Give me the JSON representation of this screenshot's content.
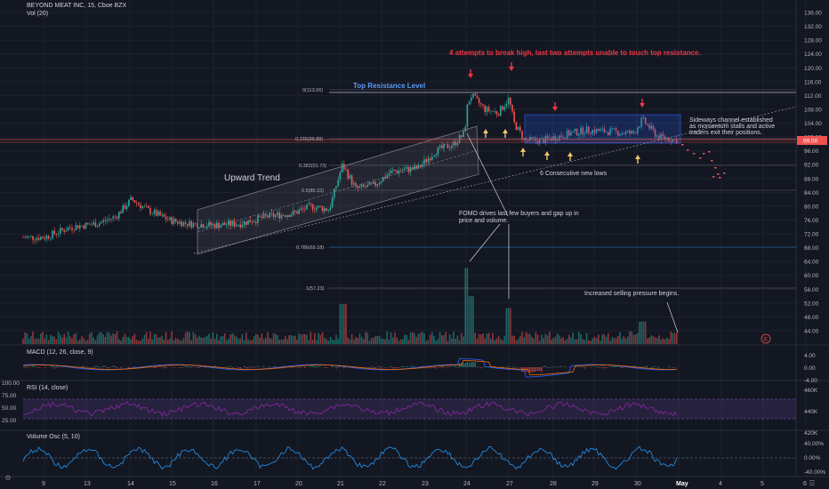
{
  "header": {
    "symbol_line": "BEYOND MEAT INC, 15, Cboe BZX",
    "volume_label": "Vol (20)"
  },
  "price_axis": {
    "ticks": [
      "136.00",
      "132.00",
      "128.00",
      "124.00",
      "120.00",
      "116.00",
      "112.00",
      "108.00",
      "104.00",
      "100.00",
      "96.00",
      "92.00",
      "88.00",
      "84.00",
      "80.00",
      "76.00",
      "72.00",
      "68.00",
      "64.00",
      "60.00",
      "56.00",
      "52.00",
      "48.00",
      "44.00"
    ],
    "current_price": "99.00"
  },
  "time_axis": {
    "ticks": [
      "9",
      "13",
      "14",
      "15",
      "16",
      "17",
      "20",
      "21",
      "22",
      "23",
      "24",
      "27",
      "28",
      "29",
      "30",
      "May",
      "4",
      "5",
      "6"
    ]
  },
  "fib_levels": [
    {
      "label": "0(113.06)"
    },
    {
      "label": "0.236(99.88)"
    },
    {
      "label": "0.382(91.73)"
    },
    {
      "label": "0.5(85.15)"
    },
    {
      "label": "0.786(69.18)"
    },
    {
      "label": "1(57.23)"
    }
  ],
  "annotations": {
    "top_red": "4 attempts to break high, last two attempts unable to touch top resistance.",
    "top_resistance": "Top Resistance Level",
    "upward_trend": "Upward Trend",
    "sideways_line1": "Sideways channel established",
    "sideways_line2": "as momentum stalls and active",
    "sideways_line3": "traders exit their positions.",
    "new_lows": "6 Consecutive new lows",
    "fomo_line1": "FOMO drives last few buyers and gap up in",
    "fomo_line2": "price and volume.",
    "selling": "Increased selling pressure begins.",
    "earnings_badge": "E"
  },
  "macd": {
    "label": "MACD (12, 26, close, 9)",
    "ticks": [
      "4.00",
      "0.00",
      "-4.00"
    ]
  },
  "rsi": {
    "label": "RSI (14, close)",
    "left_ticks": [
      "100.00",
      "75.00",
      "50.00",
      "25.00"
    ],
    "right_ticks": [
      "460K",
      "440K",
      "420K"
    ]
  },
  "volume_osc": {
    "label": "Volume Osc (5, 10)",
    "ticks": [
      "40.00%",
      "0.00%",
      "-40.00%"
    ]
  },
  "colors": {
    "up": "#26a69a",
    "down": "#ef5350",
    "background": "#131722",
    "grid": "#1e222d",
    "annotation_red": "#f23645",
    "annotation_blue": "#5b9cf6",
    "rsi_band": "#7e57c2",
    "osc_line": "#2196f3"
  },
  "icons": {
    "settings": "gear-icon",
    "logo": "tradingview-logo-icon"
  }
}
